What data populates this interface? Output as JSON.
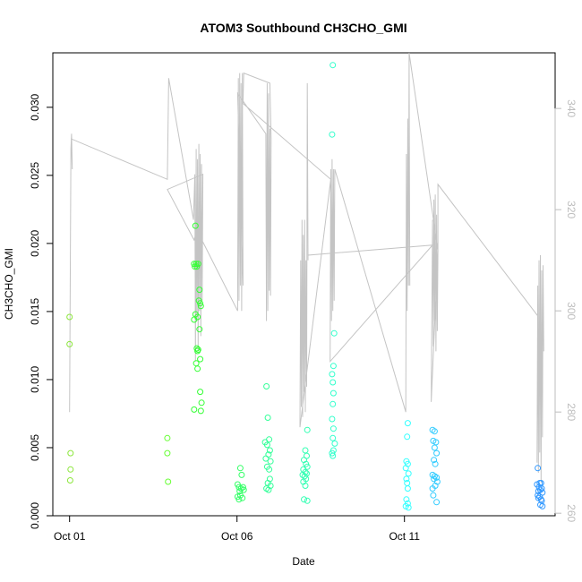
{
  "chart_data": {
    "type": "scatter",
    "title": "ATOM3 Southbound CH3CHO_GMI",
    "xlabel": "Date",
    "ylabel": "CH3CHO_GMI",
    "x_ticks": [
      {
        "day": 1,
        "label": "Oct 01"
      },
      {
        "day": 6,
        "label": "Oct 06"
      },
      {
        "day": 11,
        "label": "Oct 11"
      }
    ],
    "xlim": [
      0.5,
      15.5
    ],
    "ylim": [
      0,
      0.034
    ],
    "y_ticks": [
      "0.000",
      "0.005",
      "0.010",
      "0.015",
      "0.020",
      "0.025",
      "0.030"
    ],
    "y2lim": [
      259.5,
      351
    ],
    "y2_ticks": [
      "260",
      "280",
      "300",
      "320",
      "340"
    ],
    "grid": false,
    "colors": {
      "axis": "#000000",
      "secondary_axis": "#bdbdbd",
      "line": "#c4c4c4"
    },
    "series": [
      {
        "color": "#8ce63c",
        "points": [
          [
            1.0,
            0.0146
          ],
          [
            1.0,
            0.0126
          ],
          [
            1.03,
            0.0046
          ],
          [
            1.03,
            0.0034
          ],
          [
            1.02,
            0.0026
          ]
        ]
      },
      {
        "color": "#66ff33",
        "points": [
          [
            3.92,
            0.0057
          ],
          [
            3.92,
            0.0046
          ],
          [
            3.94,
            0.0025
          ]
        ]
      },
      {
        "color": "#33ff33",
        "points": [
          [
            4.76,
            0.0213
          ],
          [
            4.72,
            0.0185
          ],
          [
            4.78,
            0.0185
          ],
          [
            4.84,
            0.0185
          ],
          [
            4.74,
            0.0183
          ],
          [
            4.8,
            0.0183
          ],
          [
            4.88,
            0.0166
          ],
          [
            4.86,
            0.0158
          ],
          [
            4.9,
            0.0156
          ],
          [
            4.92,
            0.0154
          ],
          [
            4.76,
            0.0148
          ],
          [
            4.72,
            0.0144
          ],
          [
            4.82,
            0.0146
          ],
          [
            4.88,
            0.0137
          ],
          [
            4.8,
            0.0123
          ],
          [
            4.82,
            0.0121
          ],
          [
            4.84,
            0.0122
          ],
          [
            4.78,
            0.0112
          ],
          [
            4.9,
            0.0115
          ],
          [
            4.82,
            0.0108
          ],
          [
            4.9,
            0.0091
          ],
          [
            4.94,
            0.0083
          ],
          [
            4.72,
            0.0078
          ],
          [
            4.92,
            0.0077
          ]
        ]
      },
      {
        "color": "#33ff66",
        "points": [
          [
            6.1,
            0.0035
          ],
          [
            6.14,
            0.003
          ],
          [
            6.02,
            0.0023
          ],
          [
            6.06,
            0.0021
          ],
          [
            6.12,
            0.002
          ],
          [
            6.18,
            0.0021
          ],
          [
            6.08,
            0.0018
          ],
          [
            6.2,
            0.0019
          ],
          [
            6.02,
            0.0014
          ],
          [
            6.1,
            0.0015
          ],
          [
            6.16,
            0.0013
          ],
          [
            6.06,
            0.0012
          ]
        ]
      },
      {
        "color": "#33ff99",
        "points": [
          [
            6.88,
            0.0095
          ],
          [
            6.92,
            0.0072
          ],
          [
            6.96,
            0.0056
          ],
          [
            6.84,
            0.0054
          ],
          [
            6.9,
            0.0052
          ],
          [
            6.98,
            0.0048
          ],
          [
            6.94,
            0.0045
          ],
          [
            6.86,
            0.0042
          ],
          [
            7.0,
            0.004
          ],
          [
            6.9,
            0.0036
          ],
          [
            6.96,
            0.0034
          ],
          [
            6.98,
            0.0027
          ],
          [
            6.92,
            0.0024
          ],
          [
            7.0,
            0.0022
          ],
          [
            6.88,
            0.002
          ],
          [
            6.94,
            0.0019
          ]
        ]
      },
      {
        "color": "#33ffb3",
        "points": [
          [
            8.1,
            0.0063
          ],
          [
            8.04,
            0.0048
          ],
          [
            8.08,
            0.0044
          ],
          [
            8.0,
            0.0041
          ],
          [
            8.06,
            0.0038
          ],
          [
            8.1,
            0.0036
          ],
          [
            7.98,
            0.0034
          ],
          [
            8.04,
            0.0032
          ],
          [
            8.08,
            0.0031
          ],
          [
            7.96,
            0.003
          ],
          [
            8.02,
            0.0029
          ],
          [
            8.06,
            0.0027
          ],
          [
            7.98,
            0.0025
          ],
          [
            8.04,
            0.0022
          ],
          [
            8.0,
            0.0012
          ],
          [
            8.1,
            0.0011
          ]
        ]
      },
      {
        "color": "#33ffcc",
        "points": [
          [
            8.86,
            0.0331
          ],
          [
            8.84,
            0.028
          ],
          [
            8.9,
            0.0134
          ],
          [
            8.88,
            0.011
          ],
          [
            8.84,
            0.0104
          ],
          [
            8.86,
            0.0098
          ],
          [
            8.88,
            0.009
          ],
          [
            8.86,
            0.0082
          ],
          [
            8.84,
            0.0071
          ],
          [
            8.88,
            0.0064
          ],
          [
            8.86,
            0.0057
          ],
          [
            8.92,
            0.0053
          ],
          [
            8.88,
            0.0048
          ],
          [
            8.84,
            0.0046
          ],
          [
            8.86,
            0.0044
          ]
        ]
      },
      {
        "color": "#33ffff",
        "points": [
          [
            11.1,
            0.0068
          ],
          [
            11.08,
            0.0058
          ],
          [
            11.06,
            0.004
          ],
          [
            11.1,
            0.0038
          ],
          [
            11.04,
            0.0035
          ],
          [
            11.12,
            0.0031
          ],
          [
            11.06,
            0.0027
          ],
          [
            11.08,
            0.0024
          ],
          [
            11.1,
            0.002
          ],
          [
            11.06,
            0.0012
          ],
          [
            11.1,
            0.0009
          ],
          [
            11.04,
            0.0007
          ],
          [
            11.12,
            0.0006
          ]
        ]
      },
      {
        "color": "#33ccff",
        "points": [
          [
            11.84,
            0.0063
          ],
          [
            11.9,
            0.0062
          ],
          [
            11.86,
            0.0055
          ],
          [
            11.94,
            0.0054
          ],
          [
            11.9,
            0.005
          ],
          [
            11.96,
            0.0046
          ],
          [
            11.88,
            0.0041
          ],
          [
            11.92,
            0.0038
          ],
          [
            11.84,
            0.003
          ],
          [
            11.9,
            0.0029
          ],
          [
            11.96,
            0.0028
          ],
          [
            11.88,
            0.0027
          ],
          [
            11.98,
            0.0025
          ],
          [
            11.92,
            0.0022
          ],
          [
            11.84,
            0.002
          ],
          [
            11.86,
            0.0015
          ],
          [
            11.96,
            0.001
          ]
        ]
      },
      {
        "color": "#3399ff",
        "points": [
          [
            14.98,
            0.0035
          ],
          [
            15.04,
            0.0024
          ],
          [
            14.96,
            0.0023
          ],
          [
            15.08,
            0.0024
          ],
          [
            15.02,
            0.0021
          ],
          [
            15.1,
            0.002
          ],
          [
            15.0,
            0.0018
          ],
          [
            15.06,
            0.0019
          ],
          [
            15.12,
            0.0017
          ],
          [
            14.98,
            0.0015
          ],
          [
            15.04,
            0.0014
          ],
          [
            15.08,
            0.0012
          ],
          [
            15.0,
            0.0013
          ],
          [
            15.1,
            0.0011
          ],
          [
            15.06,
            0.0008
          ],
          [
            15.12,
            0.0007
          ]
        ]
      }
    ],
    "secondary_line": {
      "color": "#c4c4c4",
      "y2lim": [
        259.5,
        351
      ],
      "points": [
        [
          1.0,
          280
        ],
        [
          1.04,
          332
        ],
        [
          1.06,
          335
        ],
        [
          1.08,
          328
        ],
        [
          1.05,
          334
        ],
        [
          3.92,
          326
        ],
        [
          3.96,
          346
        ],
        [
          4.7,
          318
        ],
        [
          4.74,
          327
        ],
        [
          4.76,
          290
        ],
        [
          4.78,
          332
        ],
        [
          4.8,
          298
        ],
        [
          4.82,
          330
        ],
        [
          4.84,
          292
        ],
        [
          4.86,
          333
        ],
        [
          4.88,
          300
        ],
        [
          4.9,
          331
        ],
        [
          4.92,
          295
        ],
        [
          4.94,
          329
        ],
        [
          4.96,
          302
        ],
        [
          4.98,
          327
        ],
        [
          3.92,
          324
        ],
        [
          4.72,
          314
        ],
        [
          4.8,
          316
        ],
        [
          6.02,
          300
        ],
        [
          6.04,
          346
        ],
        [
          6.06,
          302
        ],
        [
          6.08,
          347
        ],
        [
          6.1,
          305
        ],
        [
          6.12,
          345
        ],
        [
          6.14,
          300
        ],
        [
          6.16,
          347
        ],
        [
          6.18,
          305
        ],
        [
          6.02,
          343
        ],
        [
          6.86,
          335
        ],
        [
          6.88,
          298
        ],
        [
          6.9,
          345
        ],
        [
          6.92,
          300
        ],
        [
          6.94,
          343
        ],
        [
          6.96,
          304
        ],
        [
          6.98,
          336
        ],
        [
          7.0,
          303
        ],
        [
          7.02,
          334
        ],
        [
          6.98,
          345
        ],
        [
          6.2,
          347
        ],
        [
          6.18,
          341
        ],
        [
          8.8,
          326
        ],
        [
          7.88,
          277
        ],
        [
          7.9,
          310
        ],
        [
          7.92,
          281
        ],
        [
          7.94,
          318
        ],
        [
          7.96,
          279
        ],
        [
          7.98,
          315
        ],
        [
          8.0,
          284
        ],
        [
          8.02,
          318
        ],
        [
          8.04,
          280
        ],
        [
          8.06,
          310
        ],
        [
          8.08,
          285
        ],
        [
          8.1,
          345
        ],
        [
          8.12,
          310
        ],
        [
          8.12,
          311
        ],
        [
          11.84,
          313
        ],
        [
          8.78,
          290
        ],
        [
          8.8,
          328
        ],
        [
          8.82,
          298
        ],
        [
          8.84,
          330
        ],
        [
          8.86,
          300
        ],
        [
          8.88,
          328
        ],
        [
          8.9,
          302
        ],
        [
          8.92,
          328
        ],
        [
          11.04,
          280
        ],
        [
          11.06,
          331
        ],
        [
          11.08,
          300
        ],
        [
          11.1,
          338
        ],
        [
          11.12,
          305
        ],
        [
          11.14,
          350
        ],
        [
          11.16,
          305
        ],
        [
          11.14,
          351
        ],
        [
          12.0,
          312
        ],
        [
          11.8,
          282
        ],
        [
          11.84,
          318
        ],
        [
          11.86,
          293
        ],
        [
          11.88,
          322
        ],
        [
          11.9,
          298
        ],
        [
          11.92,
          323
        ],
        [
          11.94,
          292
        ],
        [
          11.96,
          319
        ],
        [
          11.98,
          296
        ],
        [
          12.0,
          312
        ],
        [
          12.0,
          325
        ],
        [
          14.98,
          299
        ],
        [
          14.96,
          270
        ],
        [
          14.98,
          305
        ],
        [
          15.0,
          268
        ],
        [
          15.02,
          310
        ],
        [
          15.04,
          272
        ],
        [
          15.06,
          311
        ],
        [
          15.08,
          266
        ],
        [
          15.1,
          308
        ],
        [
          15.12,
          275
        ],
        [
          15.14,
          309
        ],
        [
          15.16,
          292
        ]
      ]
    }
  }
}
